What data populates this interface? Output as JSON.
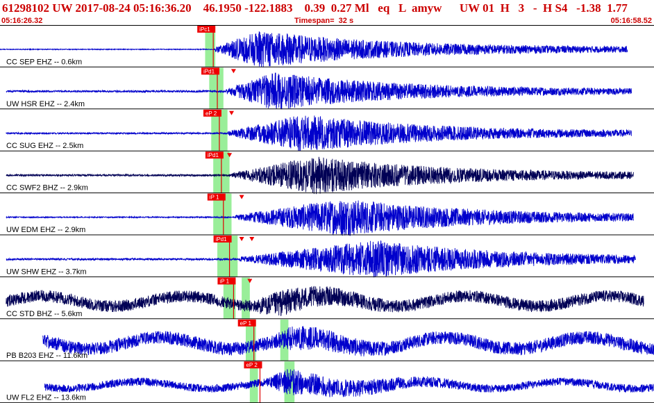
{
  "header": {
    "title": "61298102 UW 2017-08-24 05:16:36.20    46.1950 -122.1883    0.39  0.27 Ml   eq   L  amyw      UW 01  H   3   -  H S4   -1.38  1.77",
    "start_time": "05:16:26.32",
    "timespan": "Timespan=  32 s",
    "end_time": "05:16:58.52"
  },
  "chart_data": {
    "type": "line",
    "title": "61298102 UW 2017-08-24 05:16:36.20",
    "xlabel": "",
    "ylabel": "",
    "xlim": [
      0,
      32.2
    ],
    "x_start": "05:16:26.32",
    "x_end": "05:16:58.52",
    "grid": false,
    "series": [
      {
        "name": "CC SEP EHZ -- 0.6km",
        "color": "#0000cc",
        "pick_label": "iPc1",
        "pick_time": 10.5,
        "green_windows": [
          [
            10.1,
            10.6
          ]
        ],
        "s_markers": [],
        "data_start": 0.0,
        "data_end": 30.9,
        "coda_start": 10.6,
        "peak_time": 12.8,
        "noise_amp": 0.02,
        "peak_amp": 1.0
      },
      {
        "name": "UW HSR EHZ -- 2.4km",
        "color": "#0000cc",
        "pick_label": "iPd1",
        "pick_time": 10.7,
        "green_windows": [
          [
            10.3,
            11.0
          ]
        ],
        "s_markers": [
          11.5
        ],
        "data_start": 0.3,
        "data_end": 31.1,
        "coda_start": 11.1,
        "peak_time": 13.5,
        "noise_amp": 0.05,
        "peak_amp": 1.0
      },
      {
        "name": "CC SUG EHZ -- 2.5km",
        "color": "#0000cc",
        "pick_label": "eP 2",
        "pick_time": 10.8,
        "green_windows": [
          [
            10.4,
            11.2
          ]
        ],
        "s_markers": [
          11.4
        ],
        "data_start": 0.3,
        "data_end": 31.1,
        "coda_start": 11.2,
        "peak_time": 15.0,
        "noise_amp": 0.04,
        "peak_amp": 1.0
      },
      {
        "name": "CC SWF2 BHZ -- 2.9km",
        "color": "#000055",
        "pick_label": "iPd1",
        "pick_time": 10.9,
        "green_windows": [
          [
            10.5,
            11.3
          ]
        ],
        "s_markers": [
          11.3
        ],
        "data_start": 0.3,
        "data_end": 31.2,
        "coda_start": 11.4,
        "peak_time": 15.6,
        "noise_amp": 0.05,
        "peak_amp": 1.0
      },
      {
        "name": "UW EDM EHZ -- 2.9km",
        "color": "#0000cc",
        "pick_label": "iP 1",
        "pick_time": 11.0,
        "green_windows": [
          [
            10.5,
            11.4
          ]
        ],
        "s_markers": [
          11.9
        ],
        "data_start": 0.3,
        "data_end": 31.2,
        "coda_start": 11.6,
        "peak_time": 17.0,
        "noise_amp": 0.03,
        "peak_amp": 1.0
      },
      {
        "name": "UW SHW EHZ -- 3.7km",
        "color": "#0000cc",
        "pick_label": "iPd1",
        "pick_time": 11.3,
        "green_windows": [
          [
            10.7,
            11.7
          ]
        ],
        "s_markers": [
          11.9,
          12.4
        ],
        "data_start": 0.3,
        "data_end": 31.3,
        "coda_start": 11.8,
        "peak_time": 18.5,
        "noise_amp": 0.05,
        "peak_amp": 1.0
      },
      {
        "name": "CC STD BHZ -- 5.6km",
        "color": "#000055",
        "pick_label": "iP 1",
        "pick_time": 11.5,
        "green_windows": [
          [
            11.0,
            11.6
          ],
          [
            11.9,
            12.3
          ]
        ],
        "s_markers": [
          12.3
        ],
        "data_start": 0.3,
        "data_end": 31.7,
        "coda_start": 11.7,
        "peak_time": 13.8,
        "noise_amp": 0.45,
        "peak_amp": 1.0
      },
      {
        "name": "PB B203 EHZ -- 11.6km",
        "color": "#0000cc",
        "pick_label": "eP 1",
        "pick_time": 12.5,
        "green_windows": [
          [
            12.1,
            12.6
          ],
          [
            13.8,
            14.2
          ]
        ],
        "s_markers": [],
        "data_start": 2.1,
        "data_end": 32.2,
        "coda_start": 12.8,
        "peak_time": 14.5,
        "noise_amp": 0.5,
        "peak_amp": 1.0
      },
      {
        "name": "UW FL2 EHZ -- 13.6km",
        "color": "#0000cc",
        "pick_label": "eP 2",
        "pick_time": 12.8,
        "green_windows": [
          [
            12.3,
            12.7
          ],
          [
            14.0,
            14.5
          ]
        ],
        "s_markers": [],
        "data_start": 2.2,
        "data_end": 32.2,
        "coda_start": 12.9,
        "peak_time": 14.2,
        "noise_amp": 0.3,
        "peak_amp": 1.0
      }
    ]
  }
}
